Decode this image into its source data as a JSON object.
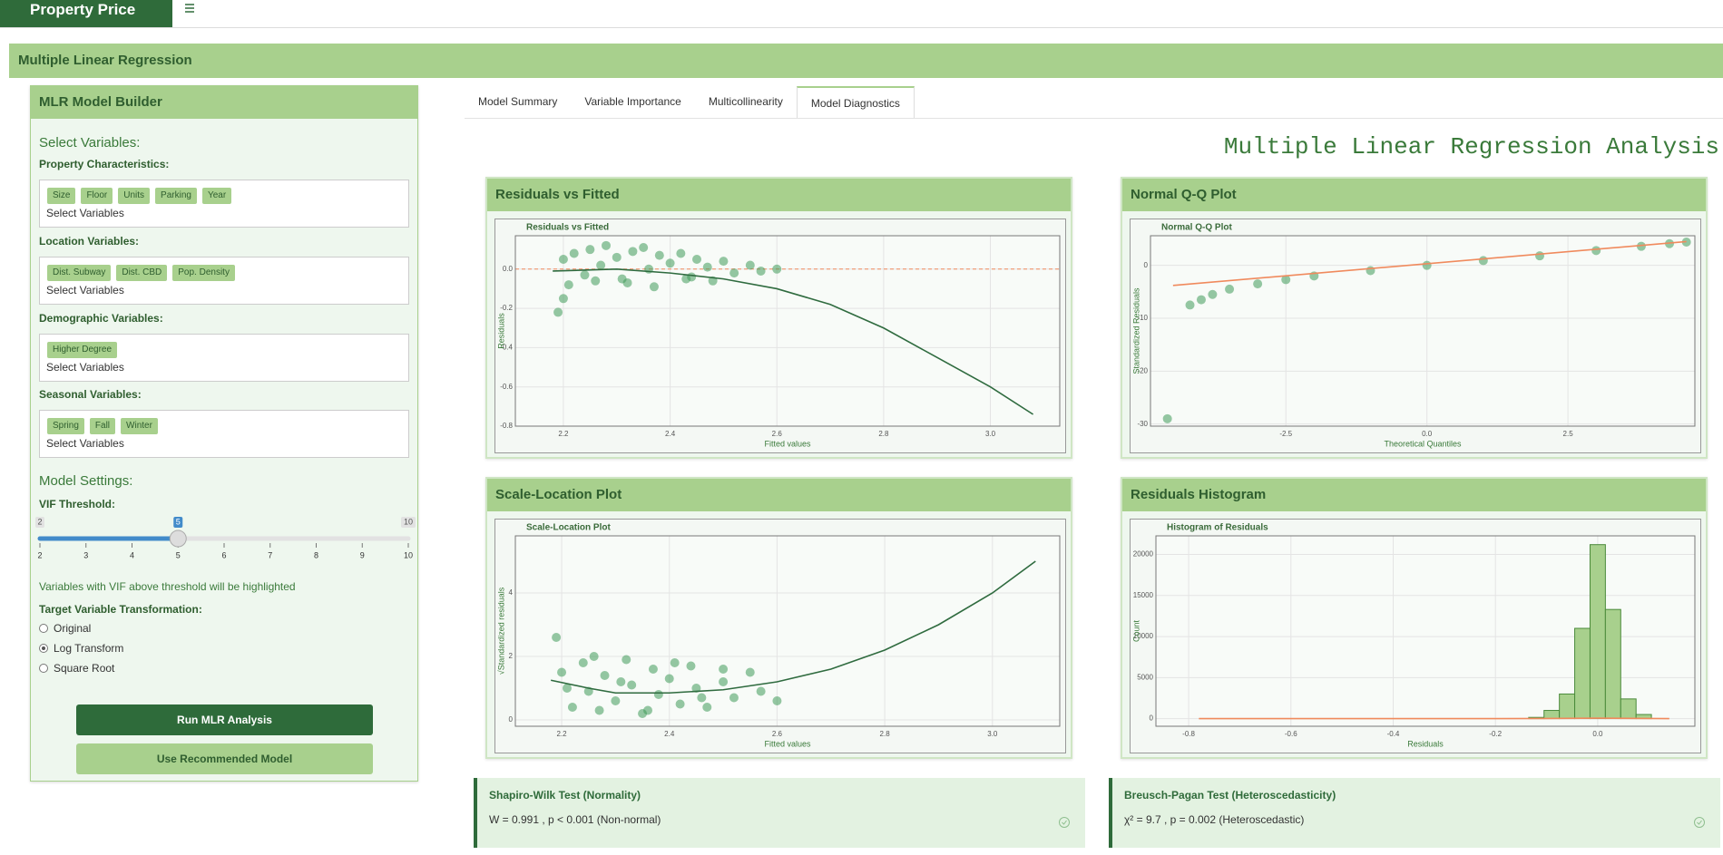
{
  "app": {
    "title": "Property Price"
  },
  "section_title": "Multiple Linear Regression",
  "sidebar": {
    "title": "MLR Model Builder",
    "select_heading": "Select Variables:",
    "groups": [
      {
        "label": "Property Characteristics:",
        "tags": [
          "Size",
          "Floor",
          "Units",
          "Parking",
          "Year"
        ],
        "placeholder": "Select Variables"
      },
      {
        "label": "Location Variables:",
        "tags": [
          "Dist. Subway",
          "Dist. CBD",
          "Pop. Density"
        ],
        "placeholder": "Select Variables"
      },
      {
        "label": "Demographic Variables:",
        "tags": [
          "Higher Degree"
        ],
        "placeholder": "Select Variables"
      },
      {
        "label": "Seasonal Variables:",
        "tags": [
          "Spring",
          "Fall",
          "Winter"
        ],
        "placeholder": "Select Variables"
      }
    ],
    "settings_heading": "Model Settings:",
    "vif": {
      "label": "VIF Threshold:",
      "min": 2,
      "max": 10,
      "value": 5,
      "ticks": [
        2,
        3,
        4,
        5,
        6,
        7,
        8,
        9,
        10
      ]
    },
    "vif_note": "Variables with VIF above threshold will be highlighted",
    "transform": {
      "label": "Target Variable Transformation:",
      "options": [
        "Original",
        "Log Transform",
        "Square Root"
      ],
      "selected": 1
    },
    "buttons": [
      "Run MLR Analysis",
      "Use Recommended Model"
    ]
  },
  "tabs": {
    "items": [
      "Model Summary",
      "Variable Importance",
      "Multicollinearity",
      "Model Diagnostics"
    ],
    "active": 3
  },
  "analysis_title": "Multiple Linear Regression Analysis",
  "plots": [
    {
      "panel_title": "Residuals vs Fitted",
      "chart_data": {
        "type": "scatter",
        "title": "Residuals vs Fitted",
        "x_label": "Fitted values",
        "y_label": "Residuals",
        "xlim": [
          2.11,
          3.13
        ],
        "ylim": [
          -0.8,
          0.17
        ],
        "xticks": [
          2.2,
          2.4,
          2.6,
          2.8,
          {
            "value": 3,
            "label": "3.0"
          }
        ],
        "yticks": [
          {
            "value": 0,
            "label": "0.0"
          },
          -0.2,
          -0.4,
          -0.6,
          -0.8
        ],
        "hline": 0,
        "hline_color": "#f08a5d",
        "points": {
          "color": "#3f9b5a",
          "x": [
            2.2,
            2.22,
            2.24,
            2.25,
            2.27,
            2.28,
            2.3,
            2.31,
            2.33,
            2.35,
            2.36,
            2.38,
            2.4,
            2.42,
            2.44,
            2.45,
            2.47,
            2.5,
            2.52,
            2.55,
            2.57,
            2.6,
            2.21,
            2.26,
            2.32,
            2.37,
            2.43,
            2.48,
            2.2,
            2.19
          ],
          "y": [
            0.05,
            0.08,
            -0.03,
            0.1,
            0.02,
            0.12,
            0.06,
            -0.05,
            0.09,
            0.11,
            0.0,
            0.07,
            0.03,
            0.08,
            -0.04,
            0.05,
            0.01,
            0.04,
            -0.02,
            0.02,
            -0.01,
            0.0,
            -0.08,
            -0.06,
            -0.07,
            -0.09,
            -0.05,
            -0.06,
            -0.15,
            -0.22
          ]
        },
        "line": {
          "color": "#2f6b3f",
          "x": [
            2.18,
            2.3,
            2.4,
            2.5,
            2.6,
            2.7,
            2.8,
            2.9,
            3.0,
            3.08
          ],
          "y": [
            -0.01,
            0.0,
            -0.02,
            -0.05,
            -0.1,
            -0.18,
            -0.3,
            -0.45,
            -0.6,
            -0.74
          ]
        }
      }
    },
    {
      "panel_title": "Normal Q-Q Plot",
      "chart_data": {
        "type": "scatter",
        "title": "Normal Q-Q Plot",
        "x_label": "Theoretical Quantiles",
        "y_label": "Standardized Residuals",
        "xlim": [
          -4.9,
          4.75
        ],
        "ylim": [
          -30.4,
          5.6
        ],
        "xticks": [
          -2.5,
          {
            "value": 0,
            "label": "0.0"
          },
          2.5
        ],
        "yticks": [
          0,
          -10,
          -20,
          -30
        ],
        "points": {
          "color": "#3f9b5a",
          "x": [
            -4.6,
            -4.2,
            -4.0,
            -3.8,
            -3.5,
            -3.0,
            -2.5,
            -2.0,
            -1.0,
            0.0,
            1.0,
            2.0,
            3.0,
            3.8,
            4.3,
            4.6
          ],
          "y": [
            -29,
            -7.5,
            -6.5,
            -5.5,
            -4.5,
            -3.5,
            -2.7,
            -2.0,
            -1.0,
            0.0,
            0.9,
            1.8,
            2.8,
            3.6,
            4.1,
            4.4
          ]
        },
        "line": {
          "color": "#f08a5d",
          "x": [
            -4.5,
            4.6
          ],
          "y": [
            -3.8,
            4.5
          ]
        }
      }
    },
    {
      "panel_title": "Scale-Location Plot",
      "chart_data": {
        "type": "scatter",
        "title": "Scale-Location Plot",
        "x_label": "Fitted values",
        "y_label": "√Standardized residuals",
        "xlim": [
          2.114,
          3.125
        ],
        "ylim": [
          -0.2,
          5.8
        ],
        "xticks": [
          2.2,
          2.4,
          2.6,
          2.8,
          {
            "value": 3,
            "label": "3.0"
          }
        ],
        "yticks": [
          0,
          2,
          4
        ],
        "points": {
          "color": "#3f9b5a",
          "x": [
            2.19,
            2.2,
            2.22,
            2.24,
            2.25,
            2.27,
            2.28,
            2.3,
            2.32,
            2.33,
            2.35,
            2.37,
            2.38,
            2.4,
            2.42,
            2.44,
            2.45,
            2.47,
            2.5,
            2.52,
            2.55,
            2.57,
            2.6,
            2.21,
            2.26,
            2.31,
            2.36,
            2.41,
            2.46,
            2.5
          ],
          "y": [
            2.6,
            1.5,
            0.4,
            1.8,
            0.9,
            0.3,
            1.4,
            0.6,
            1.9,
            1.1,
            0.2,
            1.6,
            0.8,
            1.3,
            0.5,
            1.7,
            1.0,
            0.4,
            1.2,
            0.7,
            1.5,
            0.9,
            0.6,
            1.0,
            2.0,
            1.2,
            0.3,
            1.8,
            0.7,
            1.6
          ]
        },
        "line": {
          "color": "#2f6b3f",
          "x": [
            2.18,
            2.25,
            2.3,
            2.4,
            2.5,
            2.6,
            2.7,
            2.8,
            2.9,
            3.0,
            3.08
          ],
          "y": [
            1.25,
            1.0,
            0.85,
            0.85,
            0.95,
            1.2,
            1.6,
            2.2,
            3.0,
            4.0,
            5.0
          ]
        }
      }
    },
    {
      "panel_title": "Residuals Histogram",
      "chart_data": {
        "type": "histogram",
        "title": "Histogram of Residuals",
        "x_label": "Residuals",
        "y_label": "Count",
        "xlim": [
          -0.864,
          0.19
        ],
        "ylim": [
          -930,
          22270
        ],
        "xticks": [
          -0.8,
          -0.6,
          -0.4,
          -0.2,
          {
            "value": 0,
            "label": "0.0"
          }
        ],
        "yticks": [
          0,
          5000,
          10000,
          15000,
          20000
        ],
        "color": "#a8d08d",
        "edge_color": "#4a8a3a",
        "bins": [
          -0.135,
          -0.105,
          -0.075,
          -0.045,
          -0.015,
          0.015,
          0.045,
          0.075,
          0.105
        ],
        "counts": [
          150,
          1000,
          3000,
          11000,
          21200,
          13300,
          2400,
          500
        ],
        "line": {
          "color": "#f08a5d",
          "x": [
            -0.78,
            -0.2,
            -0.1,
            0.0,
            0.1,
            0.14
          ],
          "y": [
            0,
            0,
            20,
            60,
            20,
            0
          ]
        }
      }
    }
  ],
  "tests": [
    {
      "title": "Shapiro-Wilk Test (Normality)",
      "text": "W = 0.991 , p < 0.001 (Non-normal)"
    },
    {
      "title": "Breusch-Pagan Test (Heteroscedasticity)",
      "text": "χ² = 9.7 , p = 0.002 (Heteroscedastic)"
    }
  ]
}
